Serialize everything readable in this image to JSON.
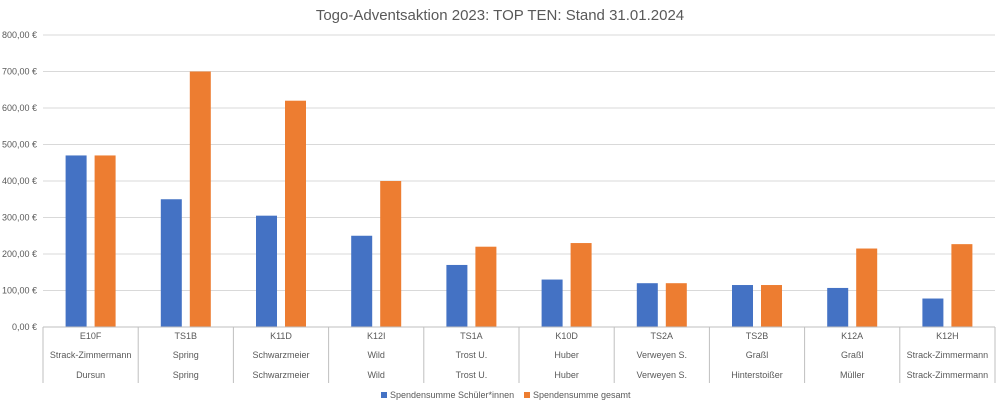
{
  "chart_data": {
    "type": "bar",
    "title": "Togo-Adventsaktion 2023: TOP TEN: Stand 31.01.2024",
    "ylim": [
      0,
      800
    ],
    "yticks": [
      "0,00 €",
      "100,00 €",
      "200,00 €",
      "300,00 €",
      "400,00 €",
      "500,00 €",
      "600,00 €",
      "700,00 €",
      "800,00 €"
    ],
    "ytick_values": [
      0,
      100,
      200,
      300,
      400,
      500,
      600,
      700,
      800
    ],
    "grid": true,
    "legend_position": "bottom",
    "categories": [
      [
        "E10F",
        "Strack-Zimmermann",
        "Dursun"
      ],
      [
        "TS1B",
        "Spring",
        "Spring"
      ],
      [
        "K11D",
        "Schwarzmeier",
        "Schwarzmeier"
      ],
      [
        "K12I",
        "Wild",
        "Wild"
      ],
      [
        "TS1A",
        "Trost U.",
        "Trost U."
      ],
      [
        "K10D",
        "Huber",
        "Huber"
      ],
      [
        "TS2A",
        "Verweyen S.",
        "Verweyen S."
      ],
      [
        "TS2B",
        "Graßl",
        "Hinterstoißer"
      ],
      [
        "K12A",
        "Graßl",
        "Müller"
      ],
      [
        "K12H",
        "Strack-Zimmermann",
        "Strack-Zimmermann"
      ]
    ],
    "series": [
      {
        "name": "Spendensumme Schüler*innen",
        "color": "#4472c4",
        "values": [
          470,
          350,
          305,
          250,
          170,
          130,
          120,
          115,
          107,
          78
        ]
      },
      {
        "name": "Spendensumme gesamt",
        "color": "#ed7d31",
        "values": [
          470,
          700,
          620,
          400,
          220,
          230,
          120,
          115,
          215,
          227
        ]
      }
    ]
  }
}
